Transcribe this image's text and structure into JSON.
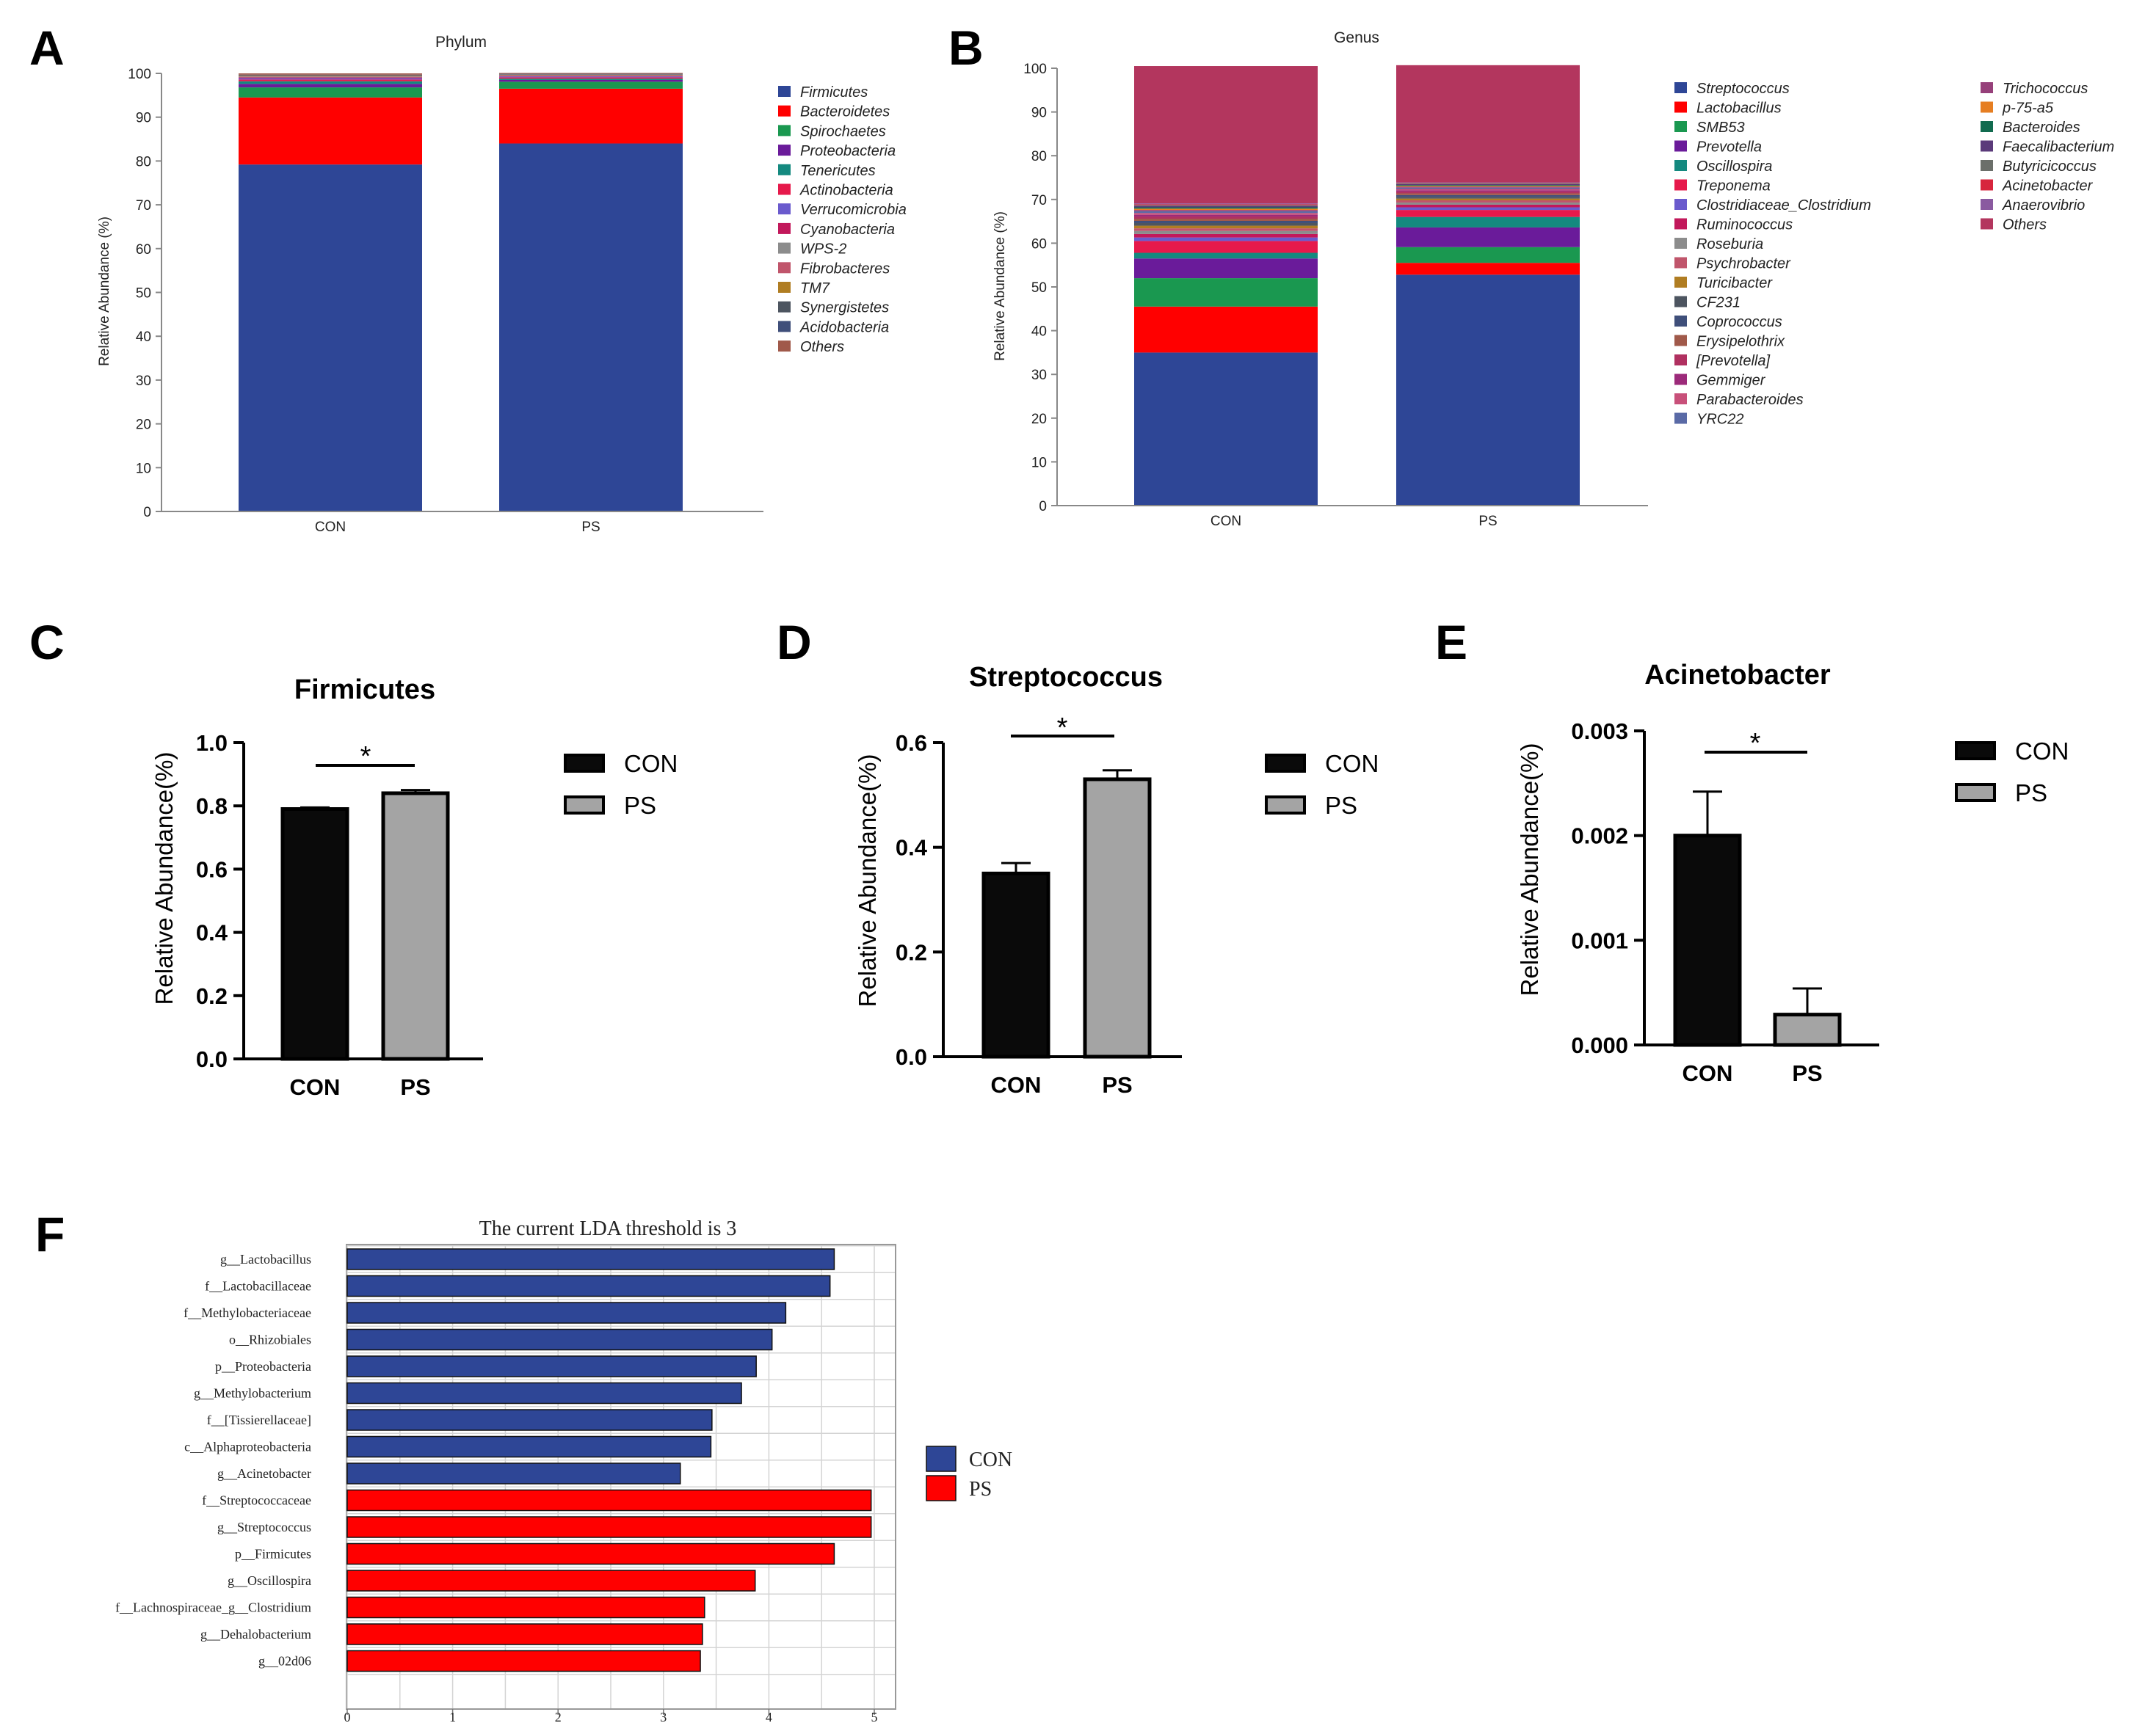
{
  "panels": {
    "A": {
      "letter": "A"
    },
    "B": {
      "letter": "B"
    },
    "C": {
      "letter": "C"
    },
    "D": {
      "letter": "D"
    },
    "E": {
      "letter": "E"
    },
    "F": {
      "letter": "F"
    }
  },
  "colors": {
    "con_bar": "#0a0a0a",
    "ps_bar": "#a4a4a4",
    "lda_con": "#2e4696",
    "lda_ps": "#ff0000"
  },
  "chart_data": [
    {
      "id": "A",
      "type": "bar",
      "stacked": true,
      "title": "Phylum",
      "xlabel": "",
      "ylabel": "Relative Abundance (%)",
      "ylim": [
        0,
        100
      ],
      "yticks": [
        0,
        10,
        20,
        30,
        40,
        50,
        60,
        70,
        80,
        90,
        100
      ],
      "categories": [
        "CON",
        "PS"
      ],
      "series": [
        {
          "name": "Firmicutes",
          "color": "#2e4696",
          "values": [
            79.2,
            84.0
          ]
        },
        {
          "name": "Bacteroidetes",
          "color": "#ff0000",
          "values": [
            15.3,
            12.5
          ]
        },
        {
          "name": "Spirochaetes",
          "color": "#1a9850",
          "values": [
            2.3,
            1.6
          ]
        },
        {
          "name": "Proteobacteria",
          "color": "#6a1b9a",
          "values": [
            0.8,
            0.4
          ]
        },
        {
          "name": "Tenericutes",
          "color": "#14897f",
          "values": [
            0.6,
            0.3
          ]
        },
        {
          "name": "Actinobacteria",
          "color": "#e6194b",
          "values": [
            0.4,
            0.3
          ]
        },
        {
          "name": "Verrucomicrobia",
          "color": "#6a5acd",
          "values": [
            0.3,
            0.2
          ]
        },
        {
          "name": "Cyanobacteria",
          "color": "#c2185b",
          "values": [
            0.2,
            0.1
          ]
        },
        {
          "name": "WPS-2",
          "color": "#8c8c8c",
          "values": [
            0.2,
            0.1
          ]
        },
        {
          "name": "Fibrobacteres",
          "color": "#c0556b",
          "values": [
            0.1,
            0.1
          ]
        },
        {
          "name": "TM7",
          "color": "#b07d22",
          "values": [
            0.1,
            0.1
          ]
        },
        {
          "name": "Synergistetes",
          "color": "#4d5560",
          "values": [
            0.1,
            0.1
          ]
        },
        {
          "name": "Acidobacteria",
          "color": "#3f4f7a",
          "values": [
            0.1,
            0.1
          ]
        },
        {
          "name": "Others",
          "color": "#a0594a",
          "values": [
            0.3,
            0.2
          ]
        }
      ]
    },
    {
      "id": "B",
      "type": "bar",
      "stacked": true,
      "title": "Genus",
      "xlabel": "",
      "ylabel": "Relative Abundance (%)",
      "ylim": [
        0,
        100
      ],
      "yticks": [
        0,
        10,
        20,
        30,
        40,
        50,
        60,
        70,
        80,
        90,
        100
      ],
      "categories": [
        "CON",
        "PS"
      ],
      "series": [
        {
          "name": "Streptococcus",
          "color": "#2e4696",
          "values": [
            35.0,
            52.8
          ]
        },
        {
          "name": "Lactobacillus",
          "color": "#ff0000",
          "values": [
            10.5,
            2.7
          ]
        },
        {
          "name": "SMB53",
          "color": "#1a9850",
          "values": [
            6.5,
            3.6
          ]
        },
        {
          "name": "Prevotella",
          "color": "#6a1b9a",
          "values": [
            4.5,
            4.5
          ]
        },
        {
          "name": "Oscillospira",
          "color": "#14897f",
          "values": [
            1.3,
            2.4
          ]
        },
        {
          "name": "Treponema",
          "color": "#e6194b",
          "values": [
            2.7,
            1.6
          ]
        },
        {
          "name": "Clostridiaceae_Clostridium",
          "color": "#6a5acd",
          "values": [
            0.8,
            0.6
          ]
        },
        {
          "name": "Ruminococcus",
          "color": "#c2185b",
          "values": [
            0.8,
            0.6
          ]
        },
        {
          "name": "Roseburia",
          "color": "#8c8c8c",
          "values": [
            0.7,
            0.5
          ]
        },
        {
          "name": "Psychrobacter",
          "color": "#c0556b",
          "values": [
            0.6,
            0.5
          ]
        },
        {
          "name": "Turicibacter",
          "color": "#b07d22",
          "values": [
            0.6,
            0.4
          ]
        },
        {
          "name": "CF231",
          "color": "#4d5560",
          "values": [
            0.6,
            0.4
          ]
        },
        {
          "name": "Coprococcus",
          "color": "#3f4f7a",
          "values": [
            0.5,
            0.4
          ]
        },
        {
          "name": "Erysipelothrix",
          "color": "#a0594a",
          "values": [
            0.5,
            0.4
          ]
        },
        {
          "name": "[Prevotella]",
          "color": "#b03060",
          "values": [
            0.5,
            0.4
          ]
        },
        {
          "name": "Gemmiger",
          "color": "#9c2a7a",
          "values": [
            0.4,
            0.3
          ]
        },
        {
          "name": "Parabacteroides",
          "color": "#c8507a",
          "values": [
            0.4,
            0.3
          ]
        },
        {
          "name": "YRC22",
          "color": "#5a6aa6",
          "values": [
            0.4,
            0.3
          ]
        },
        {
          "name": "Trichococcus",
          "color": "#96407a",
          "values": [
            0.3,
            0.2
          ]
        },
        {
          "name": "p-75-a5",
          "color": "#e67e22",
          "values": [
            0.3,
            0.2
          ]
        },
        {
          "name": "Bacteroides",
          "color": "#116b4f",
          "values": [
            0.3,
            0.2
          ]
        },
        {
          "name": "Faecalibacterium",
          "color": "#5b3a7a",
          "values": [
            0.3,
            0.2
          ]
        },
        {
          "name": "Butyricicoccus",
          "color": "#6b6f6a",
          "values": [
            0.2,
            0.2
          ]
        },
        {
          "name": "Acinetobacter",
          "color": "#d7263d",
          "values": [
            0.2,
            0.1
          ]
        },
        {
          "name": "Anaerovibrio",
          "color": "#8a5aa0",
          "values": [
            0.2,
            0.1
          ]
        },
        {
          "name": "Others",
          "color": "#b3365e",
          "values": [
            31.4,
            26.8
          ]
        }
      ]
    },
    {
      "id": "C",
      "type": "bar",
      "title": "Firmicutes",
      "xlabel": "",
      "ylabel": "Relative Abundance(%)",
      "ylim": [
        0,
        1.0
      ],
      "yticks": [
        "0.0",
        "0.2",
        "0.4",
        "0.6",
        "0.8",
        "1.0"
      ],
      "categories": [
        "CON",
        "PS"
      ],
      "values": [
        0.79,
        0.84
      ],
      "errors": [
        0.005,
        0.01
      ],
      "significance": "*",
      "legend": [
        "CON",
        "PS"
      ]
    },
    {
      "id": "D",
      "type": "bar",
      "title": "Streptococcus",
      "xlabel": "",
      "ylabel": "Relative Abundance(%)",
      "ylim": [
        0,
        0.6
      ],
      "yticks": [
        "0.0",
        "0.2",
        "0.4",
        "0.6"
      ],
      "categories": [
        "CON",
        "PS"
      ],
      "values": [
        0.35,
        0.53
      ],
      "errors": [
        0.02,
        0.017
      ],
      "significance": "*",
      "legend": [
        "CON",
        "PS"
      ]
    },
    {
      "id": "E",
      "type": "bar",
      "title": "Acinetobacter",
      "xlabel": "",
      "ylabel": "Relative Abundance(%)",
      "ylim": [
        0,
        0.003
      ],
      "yticks": [
        "0.000",
        "0.001",
        "0.002",
        "0.003"
      ],
      "categories": [
        "CON",
        "PS"
      ],
      "values": [
        0.002,
        0.00029
      ],
      "errors": [
        0.00042,
        0.00025
      ],
      "significance": "*",
      "legend": [
        "CON",
        "PS"
      ]
    },
    {
      "id": "F",
      "type": "bar",
      "orientation": "horizontal",
      "title": "The current LDA threshold is 3",
      "xlabel": "",
      "ylabel": "",
      "xlim": [
        0,
        5.2
      ],
      "xticks": [
        "0",
        "1",
        "2",
        "3",
        "4",
        "5"
      ],
      "categories": [
        "g__Lactobacillus",
        "f__Lactobacillaceae",
        "f__Methylobacteriaceae",
        "o__Rhizobiales",
        "p__Proteobacteria",
        "g__Methylobacterium",
        "f__[Tissierellaceae]",
        "c__Alphaproteobacteria",
        "g__Acinetobacter",
        "f__Streptococcaceae",
        "g__Streptococcus",
        "p__Firmicutes",
        "g__Oscillospira",
        "f__Lachnospiraceae_g__Clostridium",
        "g__Dehalobacterium",
        "g__02d06"
      ],
      "values": [
        4.62,
        4.58,
        4.16,
        4.03,
        3.88,
        3.74,
        3.46,
        3.45,
        3.16,
        4.97,
        4.97,
        4.62,
        3.87,
        3.39,
        3.37,
        3.35
      ],
      "groups": [
        "CON",
        "CON",
        "CON",
        "CON",
        "CON",
        "CON",
        "CON",
        "CON",
        "CON",
        "PS",
        "PS",
        "PS",
        "PS",
        "PS",
        "PS",
        "PS"
      ],
      "legend": [
        "CON",
        "PS"
      ]
    }
  ]
}
